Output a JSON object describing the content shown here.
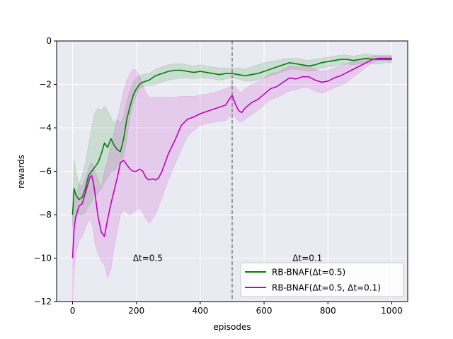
{
  "chart_data": {
    "type": "line",
    "title": "",
    "xlabel": "episodes",
    "ylabel": "rewards",
    "xlim": [
      -50,
      1050
    ],
    "ylim": [
      -12,
      0
    ],
    "xticks": [
      0,
      200,
      400,
      600,
      800,
      1000
    ],
    "yticks": [
      0,
      -2,
      -4,
      -6,
      -8,
      -10,
      -12
    ],
    "xtick_labels": [
      "0",
      "200",
      "400",
      "600",
      "800",
      "1000"
    ],
    "ytick_labels": [
      "0",
      "−2",
      "−4",
      "−6",
      "−8",
      "−10",
      "−12"
    ],
    "grid": true,
    "background": "#eaeaf2",
    "vline": {
      "x": 500,
      "color": "#808080",
      "style": "dashed"
    },
    "annotations": [
      {
        "text": "Δt=0.5",
        "x": 300,
        "y": -10
      },
      {
        "text": "Δt=0.1",
        "x": 800,
        "y": -10
      }
    ],
    "legend": {
      "position": "lower-right"
    },
    "series": [
      {
        "name": "RB-BNAF(Δt=0.5)",
        "color": "#008000",
        "x": [
          0,
          5,
          10,
          20,
          30,
          40,
          50,
          60,
          70,
          80,
          90,
          100,
          110,
          120,
          130,
          140,
          150,
          160,
          170,
          180,
          190,
          200,
          210,
          220,
          230,
          240,
          260,
          280,
          300,
          320,
          340,
          360,
          380,
          400,
          420,
          440,
          460,
          480,
          500,
          520,
          540,
          560,
          580,
          600,
          620,
          640,
          660,
          680,
          700,
          720,
          740,
          760,
          780,
          800,
          820,
          840,
          860,
          880,
          900,
          920,
          940,
          960,
          980,
          1000
        ],
        "y": [
          -8.0,
          -6.8,
          -7.1,
          -7.3,
          -7.2,
          -6.8,
          -6.2,
          -6.0,
          -5.8,
          -5.6,
          -5.2,
          -4.7,
          -4.9,
          -4.5,
          -4.8,
          -5.0,
          -5.1,
          -4.5,
          -3.6,
          -3.0,
          -2.5,
          -2.2,
          -2.0,
          -1.9,
          -1.85,
          -1.8,
          -1.6,
          -1.5,
          -1.4,
          -1.35,
          -1.35,
          -1.4,
          -1.45,
          -1.4,
          -1.45,
          -1.5,
          -1.55,
          -1.5,
          -1.5,
          -1.55,
          -1.6,
          -1.55,
          -1.5,
          -1.4,
          -1.3,
          -1.2,
          -1.1,
          -1.0,
          -1.05,
          -1.1,
          -1.15,
          -1.1,
          -1.0,
          -0.95,
          -0.9,
          -0.85,
          -0.85,
          -0.9,
          -0.85,
          -0.8,
          -0.85,
          -0.85,
          -0.85,
          -0.85
        ],
        "lower": [
          -8.5,
          -8.2,
          -8.0,
          -8.0,
          -8.0,
          -7.9,
          -7.6,
          -7.4,
          -7.1,
          -7.0,
          -6.8,
          -6.5,
          -6.3,
          -6.0,
          -6.0,
          -5.8,
          -5.6,
          -5.3,
          -4.5,
          -3.5,
          -2.9,
          -2.5,
          -2.2,
          -2.1,
          -2.05,
          -2.05,
          -2.0,
          -1.9,
          -1.8,
          -1.75,
          -1.7,
          -1.7,
          -1.75,
          -1.7,
          -1.7,
          -1.75,
          -1.8,
          -1.75,
          -1.7,
          -1.75,
          -1.85,
          -1.85,
          -1.8,
          -1.7,
          -1.6,
          -1.5,
          -1.4,
          -1.3,
          -1.3,
          -1.35,
          -1.4,
          -1.35,
          -1.25,
          -1.2,
          -1.15,
          -1.1,
          -1.05,
          -1.1,
          -1.05,
          -1.0,
          -1.05,
          -1.05,
          -1.0,
          -1.0
        ],
        "upper": [
          -7.2,
          -5.5,
          -6.0,
          -6.6,
          -6.2,
          -5.6,
          -4.8,
          -4.0,
          -3.3,
          -3.1,
          -3.2,
          -3.0,
          -3.2,
          -3.5,
          -3.8,
          -3.6,
          -3.8,
          -3.5,
          -2.8,
          -2.3,
          -1.9,
          -1.7,
          -1.6,
          -1.55,
          -1.5,
          -1.5,
          -1.3,
          -1.2,
          -1.1,
          -1.05,
          -1.05,
          -1.1,
          -1.15,
          -1.1,
          -1.15,
          -1.2,
          -1.25,
          -1.25,
          -1.25,
          -1.25,
          -1.3,
          -1.2,
          -1.1,
          -1.0,
          -0.95,
          -0.9,
          -0.85,
          -0.8,
          -0.8,
          -0.85,
          -0.9,
          -0.85,
          -0.8,
          -0.75,
          -0.7,
          -0.65,
          -0.65,
          -0.7,
          -0.65,
          -0.6,
          -0.65,
          -0.65,
          -0.65,
          -0.65
        ]
      },
      {
        "name": "RB-BNAF(Δt=0.5, Δt=0.1)",
        "color": "#bf00bf",
        "x": [
          0,
          5,
          10,
          20,
          30,
          40,
          50,
          55,
          60,
          65,
          70,
          80,
          90,
          100,
          110,
          120,
          130,
          140,
          150,
          160,
          170,
          180,
          190,
          200,
          210,
          220,
          230,
          240,
          250,
          260,
          270,
          280,
          290,
          300,
          320,
          340,
          360,
          380,
          400,
          420,
          440,
          460,
          480,
          490,
          500,
          510,
          520,
          530,
          540,
          560,
          580,
          600,
          620,
          640,
          660,
          680,
          700,
          720,
          740,
          760,
          780,
          800,
          820,
          840,
          860,
          880,
          900,
          920,
          940,
          960,
          980,
          1000
        ],
        "y": [
          -10.0,
          -8.6,
          -8.1,
          -7.6,
          -7.5,
          -7.0,
          -6.5,
          -6.25,
          -6.2,
          -6.5,
          -7.0,
          -8.1,
          -8.8,
          -9.0,
          -8.2,
          -7.5,
          -6.9,
          -6.3,
          -5.6,
          -5.5,
          -5.7,
          -5.9,
          -6.0,
          -6.0,
          -5.9,
          -6.0,
          -6.3,
          -6.4,
          -6.35,
          -6.4,
          -6.3,
          -6.0,
          -5.6,
          -5.2,
          -4.6,
          -3.9,
          -3.6,
          -3.5,
          -3.35,
          -3.25,
          -3.15,
          -3.05,
          -2.95,
          -2.7,
          -2.5,
          -2.9,
          -3.2,
          -3.3,
          -3.1,
          -2.85,
          -2.7,
          -2.45,
          -2.2,
          -2.1,
          -1.9,
          -1.7,
          -1.75,
          -1.65,
          -1.65,
          -1.8,
          -1.9,
          -1.85,
          -1.7,
          -1.6,
          -1.45,
          -1.3,
          -1.15,
          -1.0,
          -0.85,
          -0.8,
          -0.8,
          -0.8
        ],
        "lower": [
          -12.0,
          -10.5,
          -9.8,
          -9.2,
          -9.0,
          -8.6,
          -8.3,
          -8.2,
          -8.4,
          -8.7,
          -9.3,
          -9.8,
          -10.1,
          -10.3,
          -10.9,
          -10.5,
          -9.5,
          -8.7,
          -8.0,
          -7.8,
          -7.9,
          -8.0,
          -7.9,
          -7.8,
          -7.7,
          -7.9,
          -8.2,
          -8.4,
          -8.2,
          -8.0,
          -7.6,
          -7.2,
          -6.8,
          -6.4,
          -5.7,
          -5.0,
          -4.4,
          -4.1,
          -3.9,
          -3.8,
          -3.75,
          -3.7,
          -3.65,
          -3.5,
          -3.35,
          -3.5,
          -3.7,
          -3.75,
          -3.6,
          -3.4,
          -3.2,
          -2.95,
          -2.7,
          -2.6,
          -2.45,
          -2.3,
          -2.25,
          -2.15,
          -2.15,
          -2.3,
          -2.4,
          -2.3,
          -2.15,
          -2.05,
          -1.9,
          -1.65,
          -1.45,
          -1.2,
          -1.0,
          -0.9,
          -0.9,
          -0.9
        ],
        "upper": [
          -8.0,
          -7.5,
          -7.2,
          -6.6,
          -6.7,
          -6.3,
          -5.9,
          -5.7,
          -5.6,
          -5.8,
          -6.0,
          -6.4,
          -6.8,
          -6.0,
          -5.5,
          -4.8,
          -4.2,
          -3.6,
          -3.0,
          -2.3,
          -1.8,
          -1.5,
          -1.3,
          -1.35,
          -1.6,
          -2.0,
          -2.4,
          -2.6,
          -2.6,
          -2.6,
          -2.6,
          -2.6,
          -2.6,
          -2.6,
          -2.6,
          -2.55,
          -2.55,
          -2.55,
          -2.5,
          -2.45,
          -2.4,
          -2.3,
          -2.2,
          -2.1,
          -2.0,
          -2.1,
          -2.3,
          -2.4,
          -2.2,
          -2.0,
          -1.9,
          -1.7,
          -1.5,
          -1.45,
          -1.3,
          -1.15,
          -1.2,
          -1.15,
          -1.15,
          -1.3,
          -1.4,
          -1.35,
          -1.25,
          -1.15,
          -1.05,
          -0.95,
          -0.85,
          -0.8,
          -0.7,
          -0.7,
          -0.7,
          -0.7
        ]
      }
    ]
  }
}
